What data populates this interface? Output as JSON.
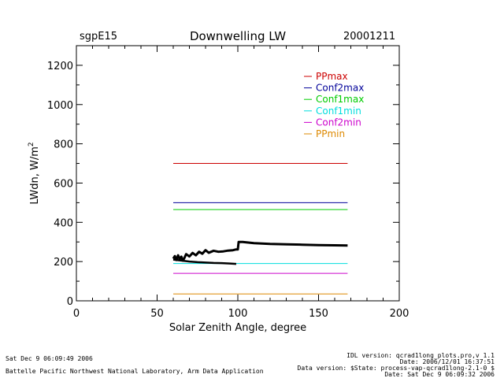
{
  "header": {
    "site": "sgpE15",
    "title": "Downwelling LW",
    "date": "20001211"
  },
  "chart_data": {
    "type": "line",
    "title": "Downwelling LW",
    "xlabel": "Solar Zenith Angle, degree",
    "ylabel": "LWdn, W/m",
    "ylabel_superscript": "2",
    "xlim": [
      0,
      200
    ],
    "ylim": [
      0,
      1300
    ],
    "xticks": [
      0,
      50,
      100,
      150,
      200
    ],
    "yticks": [
      0,
      200,
      400,
      600,
      800,
      1000,
      1200
    ],
    "grid": false,
    "legend_position": "top-right",
    "series": [
      {
        "name": "PPmax",
        "color": "#cc0000",
        "x": [
          60,
          168
        ],
        "y": [
          700,
          700
        ]
      },
      {
        "name": "Conf2max",
        "color": "#000099",
        "x": [
          60,
          168
        ],
        "y": [
          500,
          500
        ]
      },
      {
        "name": "Conf1max",
        "color": "#00cc00",
        "x": [
          60,
          168
        ],
        "y": [
          465,
          465
        ]
      },
      {
        "name": "Conf1min",
        "color": "#00dddd",
        "x": [
          60,
          168
        ],
        "y": [
          190,
          190
        ]
      },
      {
        "name": "Conf2min",
        "color": "#cc00cc",
        "x": [
          60,
          168
        ],
        "y": [
          140,
          140
        ]
      },
      {
        "name": "PPmin",
        "color": "#dd8800",
        "x": [
          60,
          168
        ],
        "y": [
          35,
          35
        ]
      }
    ],
    "measured": {
      "color": "#000000",
      "x": [
        60,
        61,
        62,
        63,
        64,
        65,
        66,
        67,
        68,
        70,
        72,
        74,
        76,
        78,
        80,
        82,
        85,
        88,
        91,
        94,
        97,
        99,
        100,
        100.5,
        103,
        110,
        120,
        130,
        140,
        150,
        160,
        168
      ],
      "y": [
        215,
        228,
        208,
        232,
        212,
        225,
        205,
        220,
        238,
        226,
        244,
        232,
        250,
        240,
        258,
        245,
        255,
        250,
        252,
        256,
        258,
        262,
        262,
        300,
        300,
        294,
        290,
        288,
        286,
        284,
        283,
        282
      ],
      "x2": [
        60,
        65,
        70,
        75,
        80,
        85,
        90,
        95,
        99
      ],
      "y2": [
        210,
        205,
        200,
        197,
        195,
        193,
        192,
        190,
        188
      ]
    }
  },
  "footer": {
    "left_date": "Sat Dec  9 06:09:49 2006",
    "left_org": "Battelle Pacific Northwest National Laboratory, Arm Data Application",
    "idl_version": "IDL version: qcrad1long_plots.pro,v 1.1",
    "plot_date": "Date: 2006/12/01 16:37:51",
    "data_version": "Data version: $State: process-vap-qcrad1long-2.1-0 $",
    "run_date": "Date: Sat Dec  9 06:09:32 2006"
  }
}
